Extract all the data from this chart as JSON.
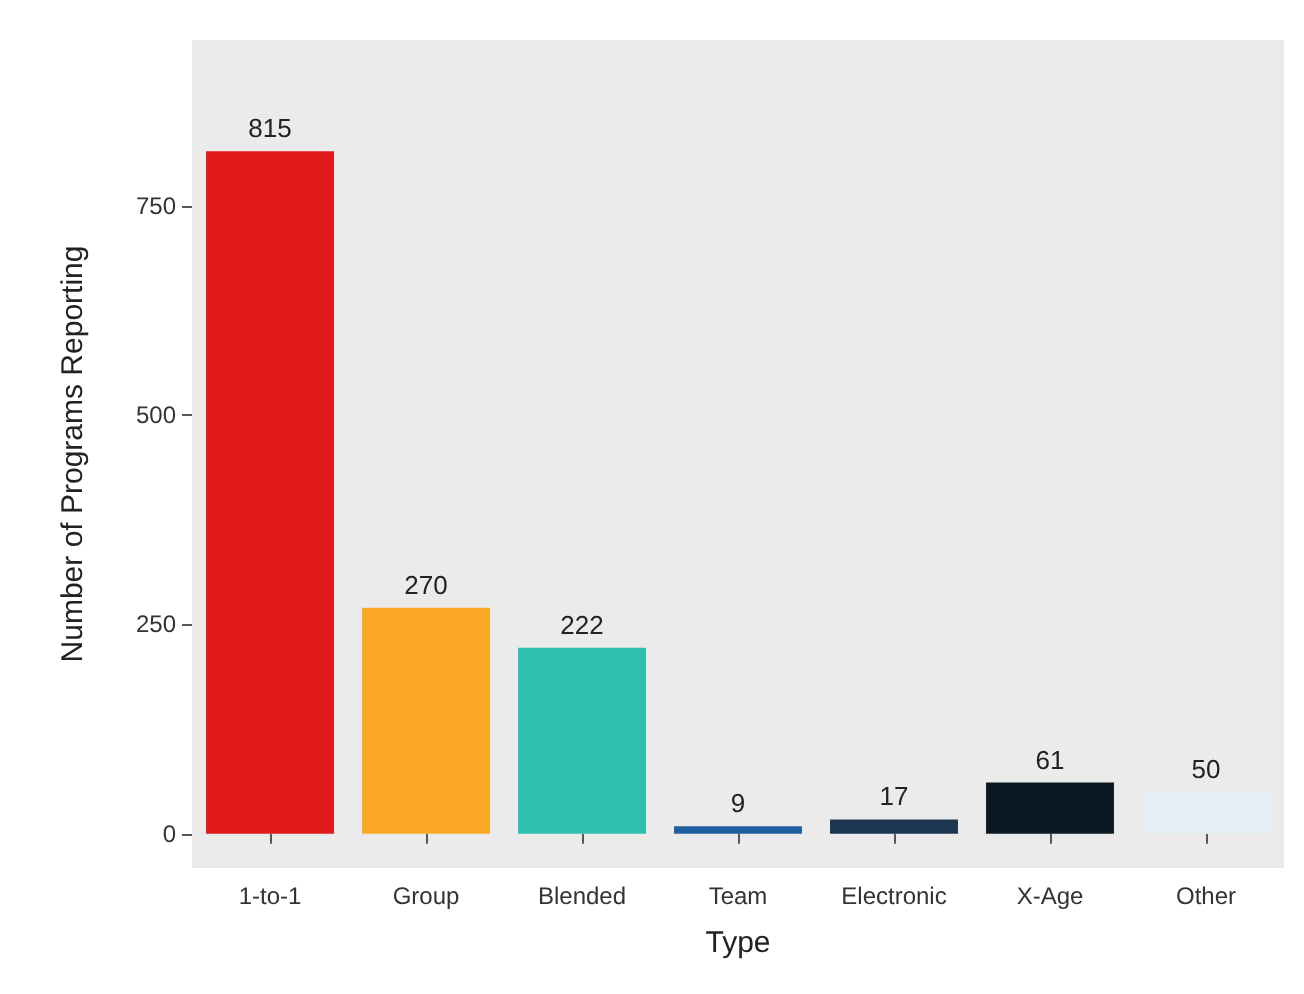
{
  "chart_data": {
    "type": "bar",
    "xlabel": "Type",
    "ylabel": "Number of Programs Reporting",
    "categories": [
      "1-to-1",
      "Group",
      "Blended",
      "Team",
      "Electronic",
      "X-Age",
      "Other"
    ],
    "values": [
      815,
      270,
      222,
      9,
      17,
      61,
      50
    ],
    "colors": [
      "#e31a1c",
      "#fca827",
      "#2fbfac",
      "#1f60a0",
      "#1c3550",
      "#0b1a22",
      "#e6eff4"
    ],
    "ylim": [
      -41,
      948
    ],
    "yticks": [
      0,
      250,
      500,
      750
    ],
    "grid": false,
    "data_labels": true
  }
}
